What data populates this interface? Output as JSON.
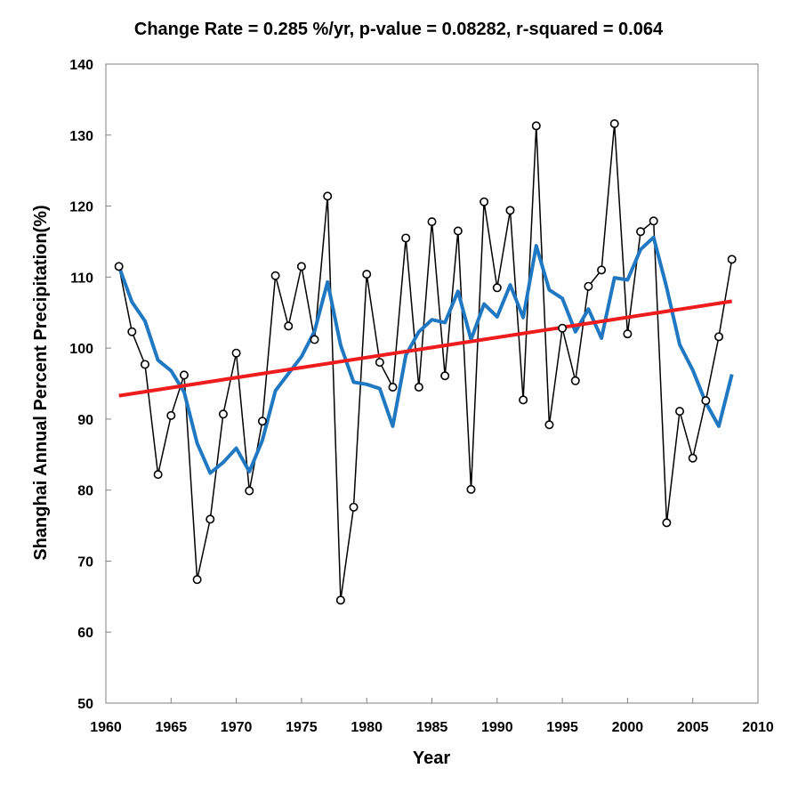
{
  "chart_data": {
    "type": "line",
    "title": "Change Rate = 0.285 %/yr,  p-value =  0.08282,  r-squared =  0.064",
    "xlabel": "Year",
    "ylabel": "Shanghai Annual Percent Precipitation(%)",
    "xlim": [
      1960,
      2010
    ],
    "ylim": [
      50,
      140
    ],
    "xticks": [
      1960,
      1965,
      1970,
      1975,
      1980,
      1985,
      1990,
      1995,
      2000,
      2005,
      2010
    ],
    "yticks": [
      50,
      60,
      70,
      80,
      90,
      100,
      110,
      120,
      130,
      140
    ],
    "grid": false,
    "legend": "none",
    "series": [
      {
        "kind": "annual",
        "color": "#000000",
        "marker": "open-circle",
        "x": [
          1961,
          1962,
          1963,
          1964,
          1965,
          1966,
          1967,
          1968,
          1969,
          1970,
          1971,
          1972,
          1973,
          1974,
          1975,
          1976,
          1977,
          1978,
          1979,
          1980,
          1981,
          1982,
          1983,
          1984,
          1985,
          1986,
          1987,
          1988,
          1989,
          1990,
          1991,
          1992,
          1993,
          1994,
          1995,
          1996,
          1997,
          1998,
          1999,
          2000,
          2001,
          2002,
          2003,
          2004,
          2005,
          2006,
          2007,
          2008
        ],
        "values": [
          111.5,
          102.3,
          97.7,
          82.2,
          90.5,
          96.2,
          67.4,
          75.9,
          90.7,
          99.3,
          79.9,
          89.7,
          110.2,
          103.1,
          111.5,
          101.2,
          121.4,
          64.5,
          77.6,
          110.4,
          98.0,
          94.5,
          115.5,
          94.5,
          117.8,
          96.1,
          116.5,
          80.1,
          120.6,
          108.5,
          119.4,
          92.7,
          131.3,
          89.2,
          102.8,
          95.4,
          108.7,
          111.0,
          131.6,
          102.0,
          116.4,
          117.9,
          75.4,
          91.1,
          84.5,
          92.6,
          101.6,
          112.5
        ]
      },
      {
        "kind": "smoothed",
        "color": "#1f78c1",
        "x": [
          1961,
          1962,
          1963,
          1964,
          1965,
          1966,
          1967,
          1968,
          1969,
          1970,
          1971,
          1972,
          1973,
          1974,
          1975,
          1976,
          1977,
          1978,
          1979,
          1980,
          1981,
          1982,
          1983,
          1984,
          1985,
          1986,
          1987,
          1988,
          1989,
          1990,
          1991,
          1992,
          1993,
          1994,
          1995,
          1996,
          1997,
          1998,
          1999,
          2000,
          2001,
          2002,
          2003,
          2004,
          2005,
          2006,
          2007,
          2008
        ],
        "values": [
          111.5,
          106.5,
          103.8,
          98.3,
          96.8,
          93.8,
          86.6,
          82.4,
          83.9,
          85.9,
          82.6,
          87.0,
          94.0,
          96.4,
          98.8,
          102.4,
          109.3,
          100.4,
          95.2,
          94.9,
          94.3,
          89.0,
          99.0,
          102.3,
          104.0,
          103.6,
          108.0,
          101.2,
          106.2,
          104.4,
          108.9,
          104.3,
          114.4,
          108.2,
          107.0,
          102.3,
          105.5,
          101.4,
          109.9,
          109.6,
          113.9,
          115.6,
          108.5,
          100.5,
          96.9,
          92.3,
          89.0,
          96.3
        ]
      },
      {
        "kind": "trend",
        "color": "#ee1c1c",
        "x": [
          1961,
          2008
        ],
        "values": [
          93.3,
          106.6
        ]
      }
    ]
  }
}
